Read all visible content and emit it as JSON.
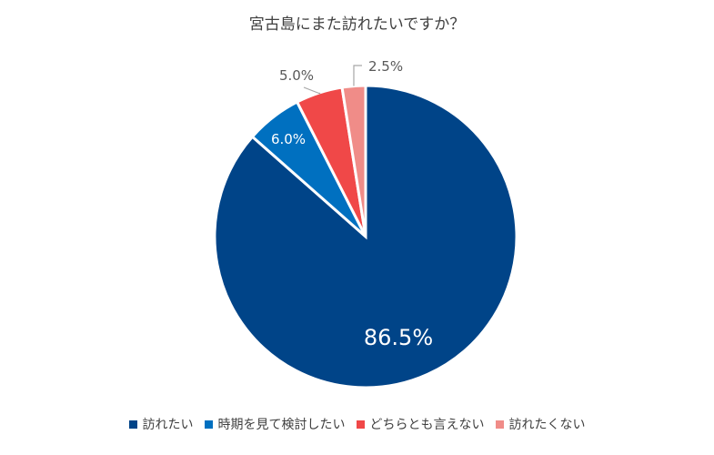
{
  "chart_data": {
    "type": "pie",
    "title": "宮古島にまた訪れたいですか？",
    "categories": [
      "訪れたい",
      "時期を見て検討したい",
      "どちらとも言えない",
      "訪れたくない"
    ],
    "values": [
      86.5,
      6.0,
      5.0,
      2.5
    ],
    "labels": [
      "86.5%",
      "6.0%",
      "5.0%",
      "2.5%"
    ],
    "colors": [
      "#004488",
      "#0070C0",
      "#F04848",
      "#F08C88"
    ],
    "legend_position": "bottom"
  }
}
